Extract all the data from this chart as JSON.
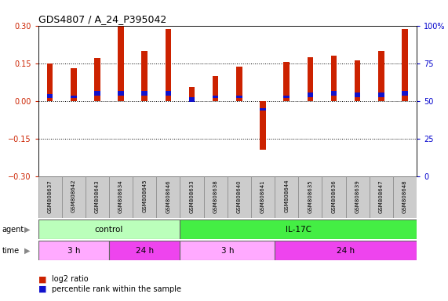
{
  "title": "GDS4807 / A_24_P395042",
  "samples": [
    "GSM808637",
    "GSM808642",
    "GSM808643",
    "GSM808634",
    "GSM808645",
    "GSM808646",
    "GSM808633",
    "GSM808638",
    "GSM808640",
    "GSM808641",
    "GSM808644",
    "GSM808635",
    "GSM808636",
    "GSM808639",
    "GSM808647",
    "GSM808648"
  ],
  "log2_ratio": [
    0.15,
    0.13,
    0.17,
    0.3,
    0.2,
    0.285,
    0.055,
    0.1,
    0.135,
    -0.195,
    0.155,
    0.175,
    0.18,
    0.16,
    0.2,
    0.285
  ],
  "percentile_bottom": [
    0.01,
    0.01,
    0.02,
    0.02,
    0.02,
    0.02,
    -0.005,
    0.01,
    0.01,
    -0.04,
    0.01,
    0.015,
    0.02,
    0.015,
    0.015,
    0.02
  ],
  "percentile_height": [
    0.018,
    0.012,
    0.018,
    0.018,
    0.018,
    0.018,
    0.018,
    0.012,
    0.012,
    0.012,
    0.012,
    0.018,
    0.018,
    0.018,
    0.018,
    0.018
  ],
  "bar_color": "#cc2200",
  "percentile_color": "#1111cc",
  "yticks_left": [
    -0.3,
    -0.15,
    0.0,
    0.15,
    0.3
  ],
  "yticks_right": [
    0,
    25,
    50,
    75,
    100
  ],
  "dotted_lines": [
    -0.15,
    0.0,
    0.15
  ],
  "agent_groups": [
    {
      "label": "control",
      "start": 0,
      "end": 6,
      "color": "#bbffbb"
    },
    {
      "label": "IL-17C",
      "start": 6,
      "end": 16,
      "color": "#44ee44"
    }
  ],
  "time_groups": [
    {
      "label": "3 h",
      "start": 0,
      "end": 3,
      "color": "#ffaaff"
    },
    {
      "label": "24 h",
      "start": 3,
      "end": 6,
      "color": "#ee44ee"
    },
    {
      "label": "3 h",
      "start": 6,
      "end": 10,
      "color": "#ffaaff"
    },
    {
      "label": "24 h",
      "start": 10,
      "end": 16,
      "color": "#ee44ee"
    }
  ],
  "legend_items": [
    {
      "label": "log2 ratio",
      "color": "#cc2200"
    },
    {
      "label": "percentile rank within the sample",
      "color": "#1111cc"
    }
  ],
  "bg_color": "#ffffff",
  "label_area_color": "#cccccc",
  "bar_width": 0.25,
  "pct_bar_width": 0.25
}
